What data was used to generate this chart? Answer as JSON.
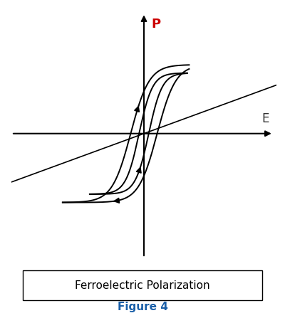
{
  "title": "Ferroelectric Polarization",
  "figure_label": "Figure 4",
  "axis_label_P": "P",
  "axis_label_E": "E",
  "bg_color": "#ffffff",
  "axis_color": "#000000",
  "curve_color": "#000000",
  "linear_color": "#000000",
  "label_P_color": "#cc0000",
  "label_E_color": "#333333",
  "figure_label_color": "#1a5fa8",
  "box_color": "#000000",
  "figsize": [
    4.0,
    4.47
  ],
  "dpi": 100,
  "xlim": [
    -2.2,
    2.2
  ],
  "ylim": [
    -1.8,
    1.8
  ],
  "linear_slope": 0.32
}
